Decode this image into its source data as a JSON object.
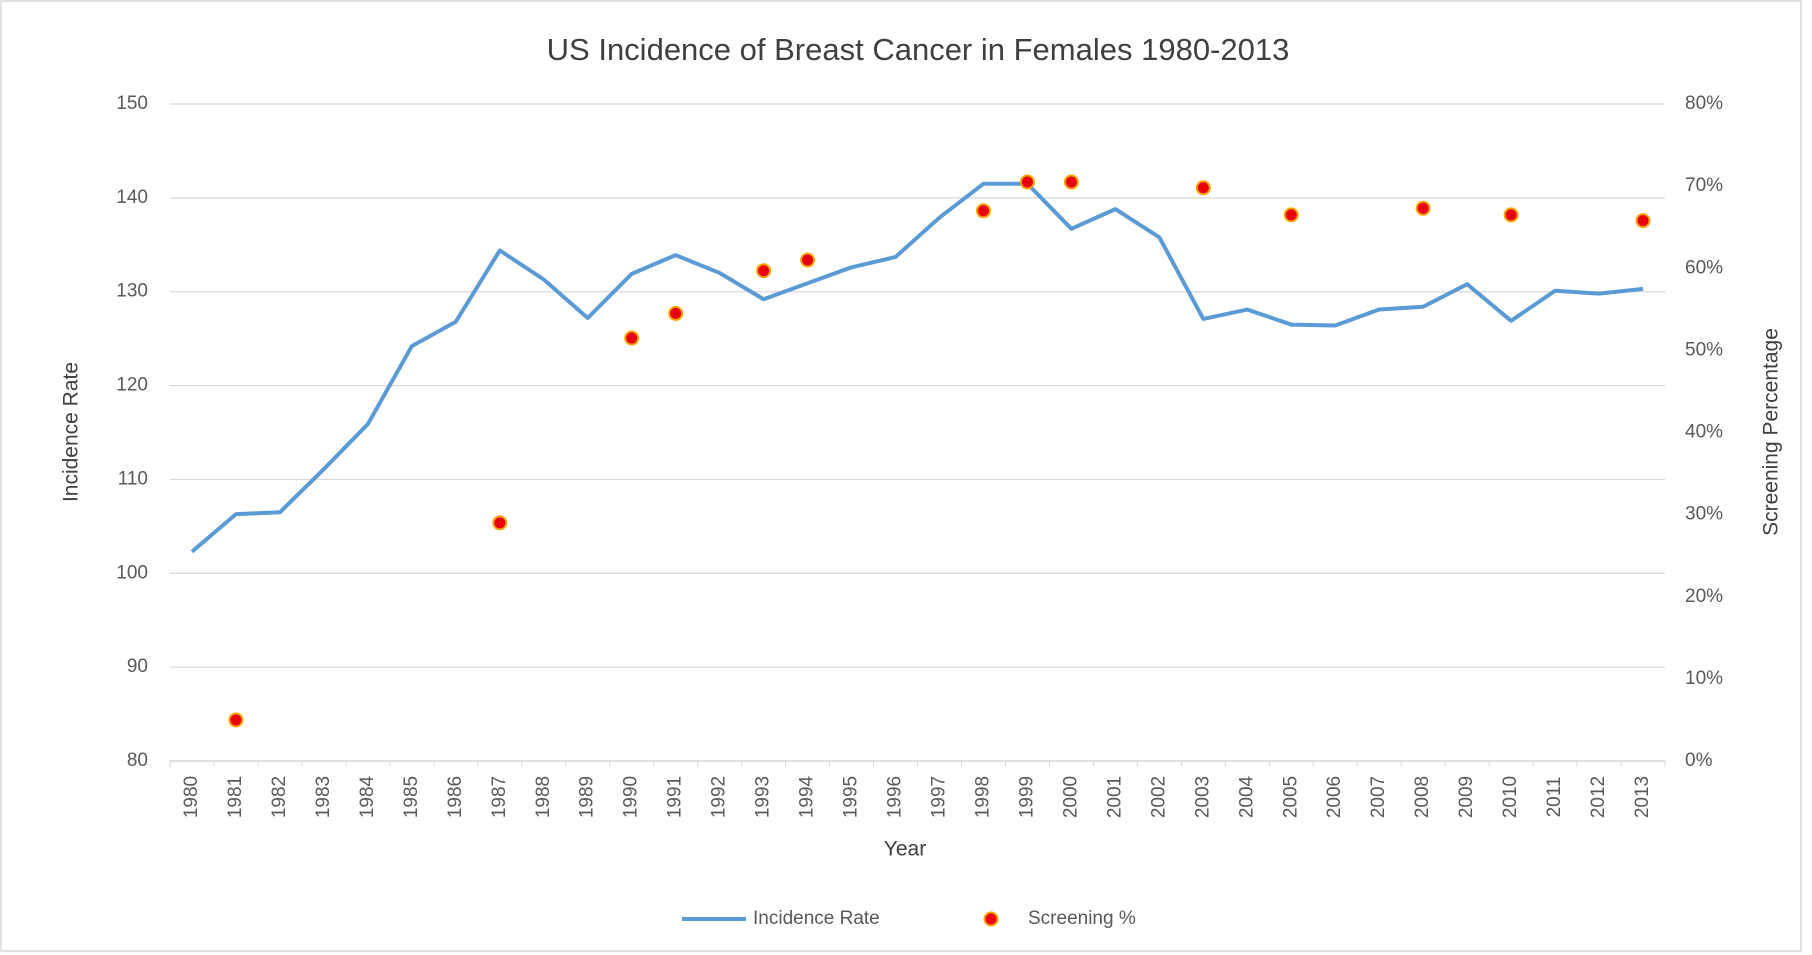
{
  "chart_data": {
    "type": "combo",
    "title": "US Incidence of Breast Cancer in Females 1980-2013",
    "x_label": "Year",
    "y_label": "Incidence Rate",
    "y2_label": "Screening Percentage",
    "categories": [
      "1980",
      "1981",
      "1982",
      "1983",
      "1984",
      "1985",
      "1986",
      "1987",
      "1988",
      "1989",
      "1990",
      "1991",
      "1992",
      "1993",
      "1994",
      "1995",
      "1996",
      "1997",
      "1998",
      "1999",
      "2000",
      "2001",
      "2002",
      "2003",
      "2004",
      "2005",
      "2006",
      "2007",
      "2008",
      "2009",
      "2010",
      "2011",
      "2012",
      "2013"
    ],
    "series": [
      {
        "name": "Incidence Rate",
        "type": "line",
        "color": "#5b9bd5",
        "axis": "y",
        "values": [
          102.3,
          106.3,
          106.5,
          111.1,
          115.9,
          124.2,
          126.8,
          134.4,
          131.3,
          127.2,
          131.9,
          133.9,
          132.0,
          129.2,
          130.9,
          132.6,
          133.7,
          137.9,
          141.5,
          141.5,
          136.7,
          138.8,
          135.8,
          127.1,
          128.1,
          126.5,
          126.4,
          128.1,
          128.4,
          130.8,
          126.9,
          130.1,
          129.8,
          130.3
        ]
      },
      {
        "name": "Screening %",
        "type": "scatter",
        "color": "#e8000b",
        "axis": "y2",
        "values": [
          null,
          5,
          null,
          null,
          null,
          null,
          null,
          29,
          null,
          null,
          51.5,
          54.5,
          null,
          59.7,
          61,
          null,
          null,
          null,
          67,
          70.5,
          70.5,
          null,
          null,
          69.8,
          null,
          66.5,
          null,
          null,
          67.3,
          null,
          66.5,
          null,
          null,
          65.8
        ]
      }
    ],
    "ylim": [
      80,
      150
    ],
    "yticks": [
      80,
      90,
      100,
      110,
      120,
      130,
      140,
      150
    ],
    "y2lim": [
      0,
      80
    ],
    "y2ticks": [
      {
        "value": 0,
        "label": "0%"
      },
      {
        "value": 10,
        "label": "10%"
      },
      {
        "value": 20,
        "label": "20%"
      },
      {
        "value": 30,
        "label": "30%"
      },
      {
        "value": 40,
        "label": "40%"
      },
      {
        "value": 50,
        "label": "50%"
      },
      {
        "value": 60,
        "label": "60%"
      },
      {
        "value": 70,
        "label": "70%"
      },
      {
        "value": 80,
        "label": "80%"
      }
    ],
    "grid": true,
    "legend": "bottom"
  }
}
